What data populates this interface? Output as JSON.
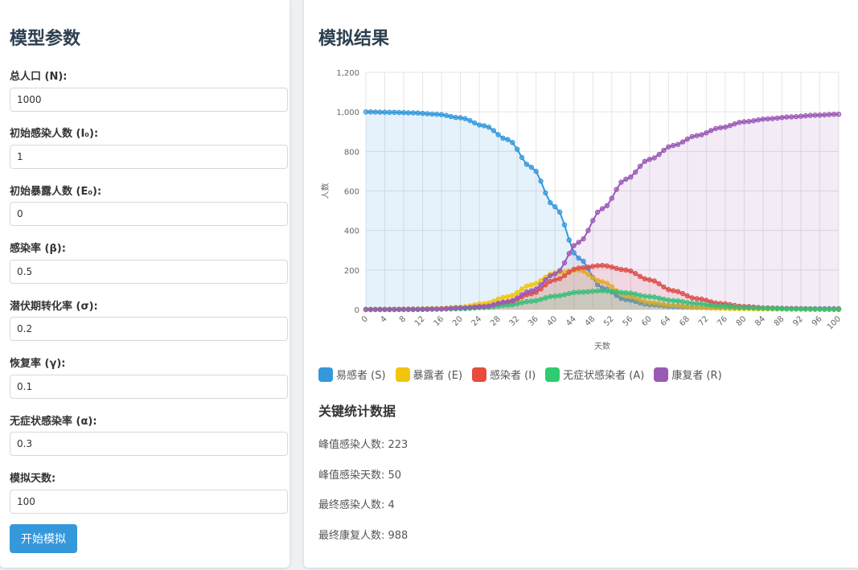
{
  "params": {
    "title": "模型参数",
    "fields": [
      {
        "label": "总人口 (N):",
        "value": "1000"
      },
      {
        "label": "初始感染人数 (I₀):",
        "value": "1"
      },
      {
        "label": "初始暴露人数 (E₀):",
        "value": "0"
      },
      {
        "label": "感染率 (β):",
        "value": "0.5"
      },
      {
        "label": "潜伏期转化率 (σ):",
        "value": "0.2"
      },
      {
        "label": "恢复率 (γ):",
        "value": "0.1"
      },
      {
        "label": "无症状感染率 (α):",
        "value": "0.3"
      },
      {
        "label": "模拟天数:",
        "value": "100"
      }
    ],
    "run_label": "开始模拟"
  },
  "results": {
    "title": "模拟结果",
    "stats_title": "关键统计数据",
    "stats": [
      "峰值感染人数: 223",
      "峰值感染天数: 50",
      "最终感染人数: 4",
      "最终康复人数: 988"
    ]
  },
  "chart_data": {
    "type": "line",
    "xlabel": "天数",
    "ylabel": "人数",
    "xlim": [
      0,
      100
    ],
    "ylim": [
      0,
      1200
    ],
    "yticks": [
      0,
      200,
      400,
      600,
      800,
      1000,
      1200
    ],
    "ytick_labels": [
      "0",
      "200",
      "400",
      "600",
      "800",
      "1,000",
      "1,200"
    ],
    "xticks": [
      0,
      4,
      8,
      12,
      16,
      20,
      24,
      28,
      32,
      36,
      40,
      44,
      48,
      52,
      56,
      60,
      64,
      68,
      72,
      76,
      80,
      84,
      88,
      92,
      96,
      100
    ],
    "grid": true,
    "legend_position": "bottom-left",
    "x": [
      0,
      5,
      10,
      15,
      20,
      25,
      30,
      35,
      40,
      45,
      50,
      55,
      60,
      65,
      70,
      75,
      80,
      85,
      90,
      95,
      100
    ],
    "series": [
      {
        "name": "易感者 (S)",
        "color": "#3498db",
        "fill": "rgba(52,152,219,0.12)",
        "values": [
          1000,
          998,
          995,
          988,
          970,
          930,
          860,
          720,
          520,
          260,
          110,
          50,
          25,
          15,
          10,
          8,
          6,
          5,
          5,
          4,
          4
        ]
      },
      {
        "name": "暴露者 (E)",
        "color": "#f1c40f",
        "fill": "rgba(241,196,15,0.12)",
        "values": [
          0,
          1,
          2,
          5,
          12,
          30,
          65,
          125,
          185,
          200,
          140,
          70,
          35,
          20,
          10,
          6,
          4,
          3,
          2,
          1,
          1
        ]
      },
      {
        "name": "感染者 (I)",
        "color": "#e74c3c",
        "fill": "rgba(231,76,60,0.12)",
        "values": [
          1,
          1,
          2,
          3,
          6,
          15,
          35,
          80,
          150,
          210,
          223,
          200,
          150,
          95,
          55,
          30,
          15,
          8,
          5,
          3,
          2
        ]
      },
      {
        "name": "无症状感染者 (A)",
        "color": "#2ecc71",
        "fill": "rgba(46,204,113,0.12)",
        "values": [
          0,
          0,
          1,
          2,
          4,
          10,
          22,
          42,
          68,
          88,
          95,
          85,
          65,
          45,
          30,
          18,
          10,
          6,
          3,
          2,
          1
        ]
      },
      {
        "name": "康复者 (R)",
        "color": "#9b59b6",
        "fill": "rgba(155,89,182,0.12)",
        "values": [
          0,
          0,
          0,
          2,
          8,
          15,
          40,
          95,
          180,
          340,
          510,
          660,
          760,
          830,
          880,
          920,
          950,
          965,
          975,
          983,
          988
        ]
      }
    ]
  }
}
